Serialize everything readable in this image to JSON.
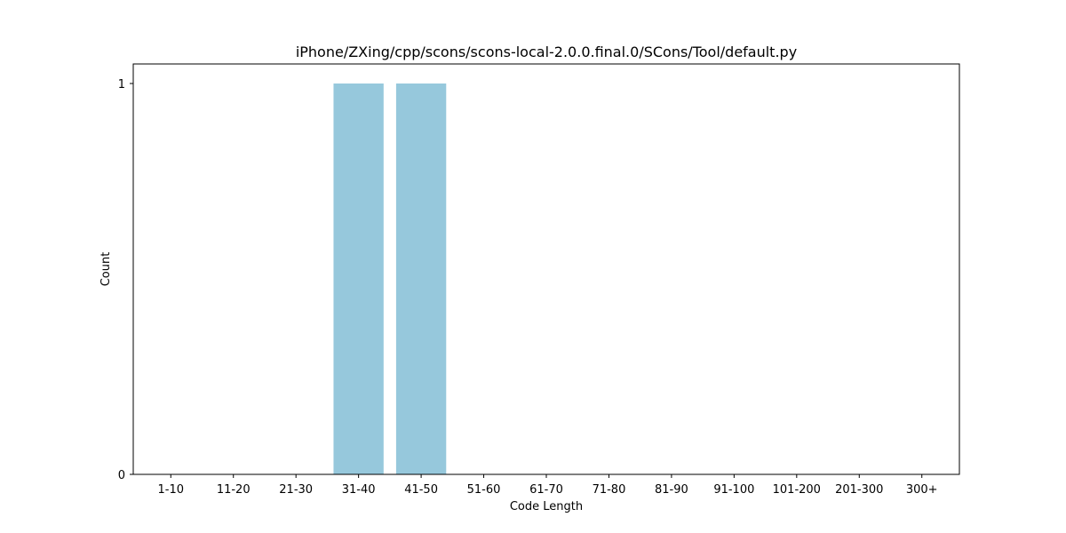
{
  "chart_data": {
    "type": "bar",
    "title": "iPhone/ZXing/cpp/scons/scons-local-2.0.0.final.0/SCons/Tool/default.py",
    "xlabel": "Code Length",
    "ylabel": "Count",
    "categories": [
      "1-10",
      "11-20",
      "21-30",
      "31-40",
      "41-50",
      "51-60",
      "61-70",
      "71-80",
      "81-90",
      "91-100",
      "101-200",
      "201-300",
      "300+"
    ],
    "values": [
      0,
      0,
      0,
      1,
      1,
      0,
      0,
      0,
      0,
      0,
      0,
      0,
      0
    ],
    "ylim": [
      0,
      1.05
    ],
    "yticks": [
      0,
      1
    ],
    "grid": false,
    "bar_color": "#96c8dc"
  }
}
